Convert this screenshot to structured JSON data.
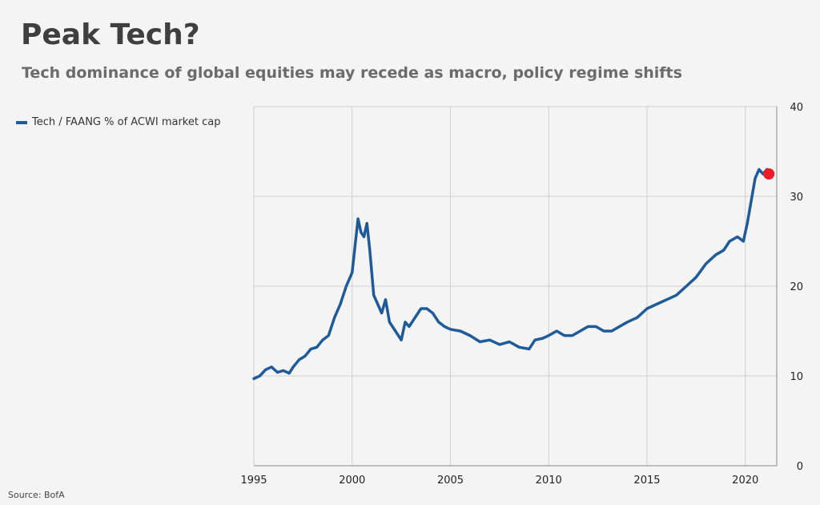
{
  "header": {
    "title": "Peak Tech?",
    "subtitle": "Tech dominance of global equities may recede as macro, policy regime shifts"
  },
  "source": "Source: BofA",
  "colors": {
    "series": "#1f5a99",
    "highlight": "#ee1b24",
    "grid": "#cfcfcf",
    "background": "#f4f4f4"
  },
  "chart_data": {
    "type": "line",
    "title": "Peak Tech?",
    "subtitle": "Tech dominance of global equities may recede as macro, policy regime shifts",
    "xlabel": "",
    "ylabel": "",
    "xlim": [
      1995,
      2021.6
    ],
    "ylim": [
      0,
      40
    ],
    "x_ticks": [
      "1995",
      "2000",
      "2005",
      "2010",
      "2015",
      "2020"
    ],
    "y_ticks": [
      "0",
      "10",
      "20",
      "30",
      "40"
    ],
    "grid": true,
    "y_axis_position": "right",
    "legend": "top-left",
    "series": [
      {
        "name": "Tech / FAANG % of ACWI market cap",
        "color": "#1f5a99",
        "x": [
          1995.0,
          1995.3,
          1995.6,
          1995.9,
          1996.2,
          1996.5,
          1996.8,
          1997.0,
          1997.3,
          1997.6,
          1997.9,
          1998.2,
          1998.5,
          1998.8,
          1999.1,
          1999.4,
          1999.7,
          2000.0,
          2000.15,
          2000.3,
          2000.45,
          2000.6,
          2000.75,
          2000.9,
          2001.1,
          2001.3,
          2001.5,
          2001.7,
          2001.9,
          2002.2,
          2002.5,
          2002.7,
          2002.9,
          2003.2,
          2003.5,
          2003.8,
          2004.1,
          2004.4,
          2004.7,
          2005.0,
          2005.5,
          2006.0,
          2006.5,
          2007.0,
          2007.5,
          2008.0,
          2008.5,
          2009.0,
          2009.3,
          2009.7,
          2010.0,
          2010.4,
          2010.8,
          2011.2,
          2011.6,
          2012.0,
          2012.4,
          2012.8,
          2013.2,
          2013.6,
          2014.0,
          2014.5,
          2015.0,
          2015.5,
          2016.0,
          2016.5,
          2017.0,
          2017.5,
          2018.0,
          2018.5,
          2018.9,
          2019.2,
          2019.6,
          2019.9,
          2020.1,
          2020.3,
          2020.5,
          2020.7,
          2020.9,
          2021.1,
          2021.2
        ],
        "values": [
          9.7,
          10.0,
          10.7,
          11.0,
          10.4,
          10.6,
          10.3,
          11.0,
          11.8,
          12.2,
          13.0,
          13.2,
          14.0,
          14.5,
          16.5,
          18.0,
          20.0,
          21.5,
          24.5,
          27.5,
          26.0,
          25.5,
          27.0,
          24.0,
          19.0,
          18.0,
          17.0,
          18.5,
          16.0,
          15.0,
          14.0,
          16.0,
          15.5,
          16.5,
          17.5,
          17.5,
          17.0,
          16.0,
          15.5,
          15.2,
          15.0,
          14.5,
          13.8,
          14.0,
          13.5,
          13.8,
          13.2,
          13.0,
          14.0,
          14.2,
          14.5,
          15.0,
          14.5,
          14.5,
          15.0,
          15.5,
          15.5,
          15.0,
          15.0,
          15.5,
          16.0,
          16.5,
          17.5,
          18.0,
          18.5,
          19.0,
          20.0,
          21.0,
          22.5,
          23.5,
          24.0,
          25.0,
          25.5,
          25.0,
          27.0,
          29.5,
          32.0,
          33.0,
          32.5,
          33.0,
          32.5
        ]
      }
    ],
    "highlight_point": {
      "x": 2021.2,
      "y": 32.5,
      "color": "#ee1b24"
    }
  }
}
